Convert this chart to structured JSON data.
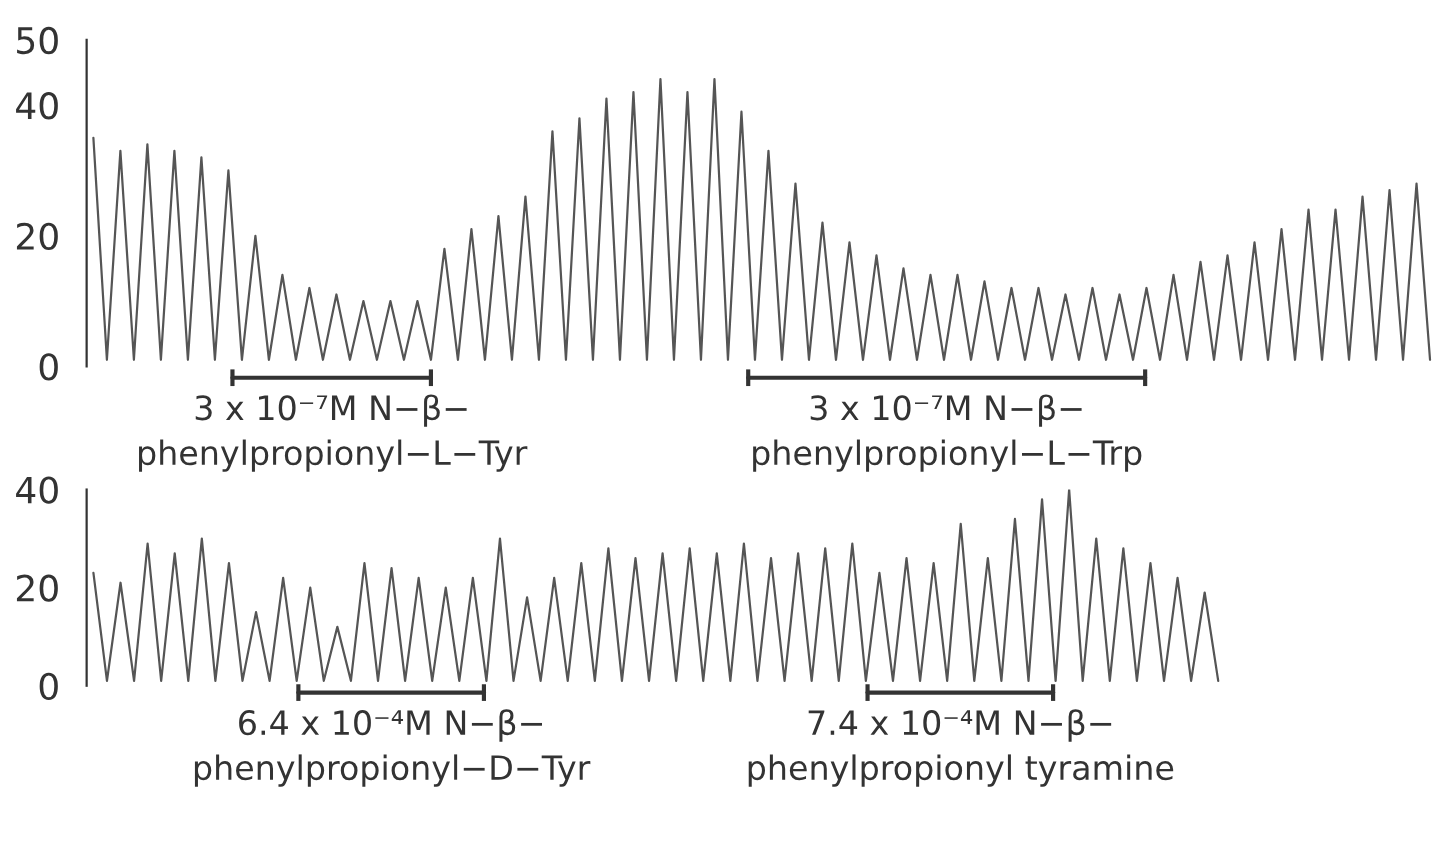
{
  "chart_data": [
    {
      "type": "line",
      "tick_labels": "y",
      "legend": false,
      "marker": "none",
      "line_style": "solid",
      "ylim": [
        0,
        50
      ],
      "yticks": [
        0,
        20,
        40,
        50
      ],
      "annotations": [
        "3 x 10⁻⁷M N−β−\nphenylpropionyl−L−Tyr",
        "3 x 10⁻⁷M N−β−\nphenylpropionyl−L−Trp"
      ],
      "categories": [
        null,
        null,
        null,
        null,
        null,
        null,
        null,
        null,
        null,
        null,
        null,
        null,
        null,
        null,
        null,
        null,
        null,
        null,
        null,
        null,
        null,
        null,
        null,
        null,
        null,
        null,
        null,
        null,
        null,
        null,
        null,
        null,
        null,
        null,
        null,
        null,
        null,
        null,
        null,
        null,
        null,
        null,
        null,
        null,
        null,
        null,
        null,
        null,
        null,
        null,
        null,
        null,
        null,
        null,
        null,
        null,
        null,
        null,
        null,
        null,
        null,
        null,
        null,
        null,
        null,
        null,
        null,
        null,
        null,
        null,
        null,
        null,
        null,
        null,
        null,
        null,
        null,
        null,
        null,
        null,
        null,
        null,
        null,
        null,
        null,
        null,
        null,
        null,
        null,
        null,
        null,
        null,
        null,
        null,
        null,
        null,
        null,
        null,
        null,
        null
      ],
      "series": [
        {
          "color": "#555555",
          "values": [
            35,
            1,
            33,
            1,
            34,
            1,
            33,
            1,
            32,
            1,
            30,
            1,
            20,
            1,
            14,
            1,
            12,
            1,
            11,
            1,
            10,
            1,
            10,
            1,
            10,
            1,
            18,
            1,
            21,
            1,
            23,
            1,
            26,
            1,
            36,
            1,
            38,
            1,
            41,
            1,
            42,
            1,
            44,
            1,
            42,
            1,
            44,
            1,
            39,
            1,
            33,
            1,
            28,
            1,
            22,
            1,
            19,
            1,
            17,
            1,
            15,
            1,
            14,
            1,
            14,
            1,
            13,
            1,
            12,
            1,
            12,
            1,
            11,
            1,
            12,
            1,
            11,
            1,
            12,
            1,
            14,
            1,
            16,
            1,
            17,
            1,
            19,
            1,
            21,
            1,
            24,
            1,
            24,
            1,
            26,
            1,
            27,
            1,
            28,
            1
          ]
        }
      ]
    },
    {
      "type": "line",
      "tick_labels": "y",
      "legend": false,
      "marker": "none",
      "line_style": "solid",
      "ylim": [
        0,
        40
      ],
      "yticks": [
        0,
        20,
        40
      ],
      "annotations": [
        "6.4 x 10⁻⁴M N−β−\nphenylpropionyl−D−Tyr",
        "7.4 x 10⁻⁴M N−β−\nphenylpropionyl tyramine"
      ],
      "categories": [
        null,
        null,
        null,
        null,
        null,
        null,
        null,
        null,
        null,
        null,
        null,
        null,
        null,
        null,
        null,
        null,
        null,
        null,
        null,
        null,
        null,
        null,
        null,
        null,
        null,
        null,
        null,
        null,
        null,
        null,
        null,
        null,
        null,
        null,
        null,
        null,
        null,
        null,
        null,
        null,
        null,
        null,
        null,
        null,
        null,
        null,
        null,
        null,
        null,
        null,
        null,
        null,
        null,
        null,
        null,
        null,
        null,
        null,
        null,
        null,
        null,
        null,
        null,
        null,
        null,
        null,
        null,
        null,
        null,
        null,
        null,
        null,
        null,
        null,
        null,
        null,
        null,
        null,
        null,
        null,
        null,
        null,
        null,
        null
      ],
      "series": [
        {
          "color": "#555555",
          "values": [
            23,
            1,
            21,
            1,
            29,
            1,
            27,
            1,
            30,
            1,
            25,
            1,
            15,
            1,
            22,
            1,
            20,
            1,
            12,
            1,
            25,
            1,
            24,
            1,
            22,
            1,
            20,
            1,
            22,
            1,
            30,
            1,
            18,
            1,
            22,
            1,
            25,
            1,
            28,
            1,
            26,
            1,
            27,
            1,
            28,
            1,
            27,
            1,
            29,
            1,
            26,
            1,
            27,
            1,
            28,
            1,
            29,
            1,
            23,
            1,
            26,
            1,
            25,
            1,
            33,
            1,
            26,
            1,
            34,
            1,
            38,
            1,
            40,
            1,
            30,
            1,
            28,
            1,
            25,
            1,
            22,
            1,
            19,
            1
          ]
        }
      ]
    }
  ]
}
